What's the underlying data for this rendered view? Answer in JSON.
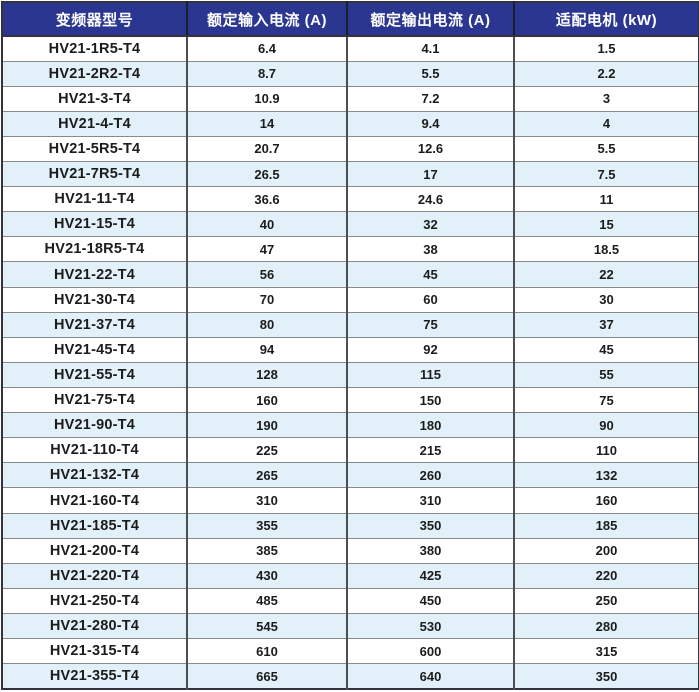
{
  "table": {
    "name": "inverter-specification-table",
    "columns": [
      "变频器型号",
      "额定输入电流 (A)",
      "额定输出电流 (A)",
      "适配电机 (kW)"
    ],
    "rows": [
      [
        "HV21-1R5-T4",
        "6.4",
        "4.1",
        "1.5"
      ],
      [
        "HV21-2R2-T4",
        "8.7",
        "5.5",
        "2.2"
      ],
      [
        "HV21-3-T4",
        "10.9",
        "7.2",
        "3"
      ],
      [
        "HV21-4-T4",
        "14",
        "9.4",
        "4"
      ],
      [
        "HV21-5R5-T4",
        "20.7",
        "12.6",
        "5.5"
      ],
      [
        "HV21-7R5-T4",
        "26.5",
        "17",
        "7.5"
      ],
      [
        "HV21-11-T4",
        "36.6",
        "24.6",
        "11"
      ],
      [
        "HV21-15-T4",
        "40",
        "32",
        "15"
      ],
      [
        "HV21-18R5-T4",
        "47",
        "38",
        "18.5"
      ],
      [
        "HV21-22-T4",
        "56",
        "45",
        "22"
      ],
      [
        "HV21-30-T4",
        "70",
        "60",
        "30"
      ],
      [
        "HV21-37-T4",
        "80",
        "75",
        "37"
      ],
      [
        "HV21-45-T4",
        "94",
        "92",
        "45"
      ],
      [
        "HV21-55-T4",
        "128",
        "115",
        "55"
      ],
      [
        "HV21-75-T4",
        "160",
        "150",
        "75"
      ],
      [
        "HV21-90-T4",
        "190",
        "180",
        "90"
      ],
      [
        "HV21-110-T4",
        "225",
        "215",
        "110"
      ],
      [
        "HV21-132-T4",
        "265",
        "260",
        "132"
      ],
      [
        "HV21-160-T4",
        "310",
        "310",
        "160"
      ],
      [
        "HV21-185-T4",
        "355",
        "350",
        "185"
      ],
      [
        "HV21-200-T4",
        "385",
        "380",
        "200"
      ],
      [
        "HV21-220-T4",
        "430",
        "425",
        "220"
      ],
      [
        "HV21-250-T4",
        "485",
        "450",
        "250"
      ],
      [
        "HV21-280-T4",
        "545",
        "530",
        "280"
      ],
      [
        "HV21-315-T4",
        "610",
        "600",
        "315"
      ],
      [
        "HV21-355-T4",
        "665",
        "640",
        "350"
      ]
    ]
  },
  "colors": {
    "header_bg": "#2b3690",
    "header_text": "#ffffff",
    "row_bg": "#ffffff",
    "row_alt_bg": "#e2f0f9",
    "grid_h": "#8a8a8a",
    "grid_v": "#4d4d55",
    "outer": "#33333e",
    "body_text": "#1c1c1c"
  }
}
